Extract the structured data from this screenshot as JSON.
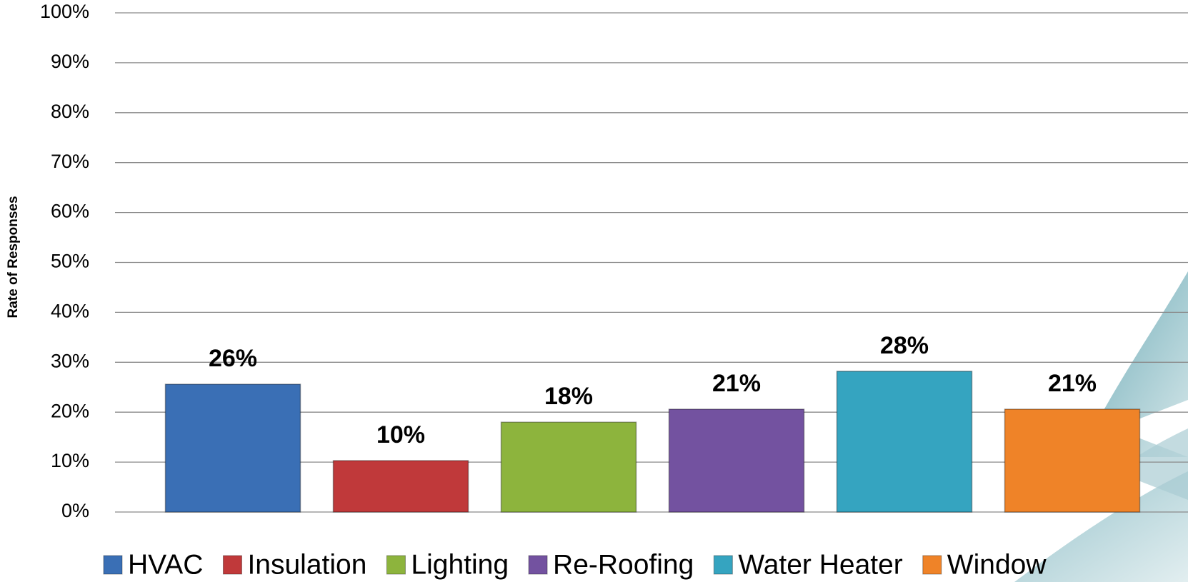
{
  "chart_data": {
    "type": "bar",
    "y_label": "Rate of Responses",
    "categories": [
      "HVAC",
      "Insulation",
      "Lighting",
      "Re-Roofing",
      "Water Heater",
      "Window"
    ],
    "values": [
      25.6,
      10.3,
      18.0,
      20.6,
      28.2,
      20.6
    ],
    "value_labels": [
      "26%",
      "10%",
      "18%",
      "21%",
      "28%",
      "21%"
    ],
    "colors": [
      "#3a6fb5",
      "#c0393a",
      "#8db43d",
      "#7352a0",
      "#35a4c0",
      "#ef8328"
    ],
    "ylim": [
      0,
      100
    ],
    "yticks": [
      {
        "value": 0,
        "label": "0%"
      },
      {
        "value": 10,
        "label": "10%"
      },
      {
        "value": 20,
        "label": "20%"
      },
      {
        "value": 30,
        "label": "30%"
      },
      {
        "value": 40,
        "label": "40%"
      },
      {
        "value": 50,
        "label": "50%"
      },
      {
        "value": 60,
        "label": "60%"
      },
      {
        "value": 70,
        "label": "70%"
      },
      {
        "value": 80,
        "label": "80%"
      },
      {
        "value": 90,
        "label": "90%"
      },
      {
        "value": 100,
        "label": "100%"
      }
    ],
    "grid": true
  }
}
